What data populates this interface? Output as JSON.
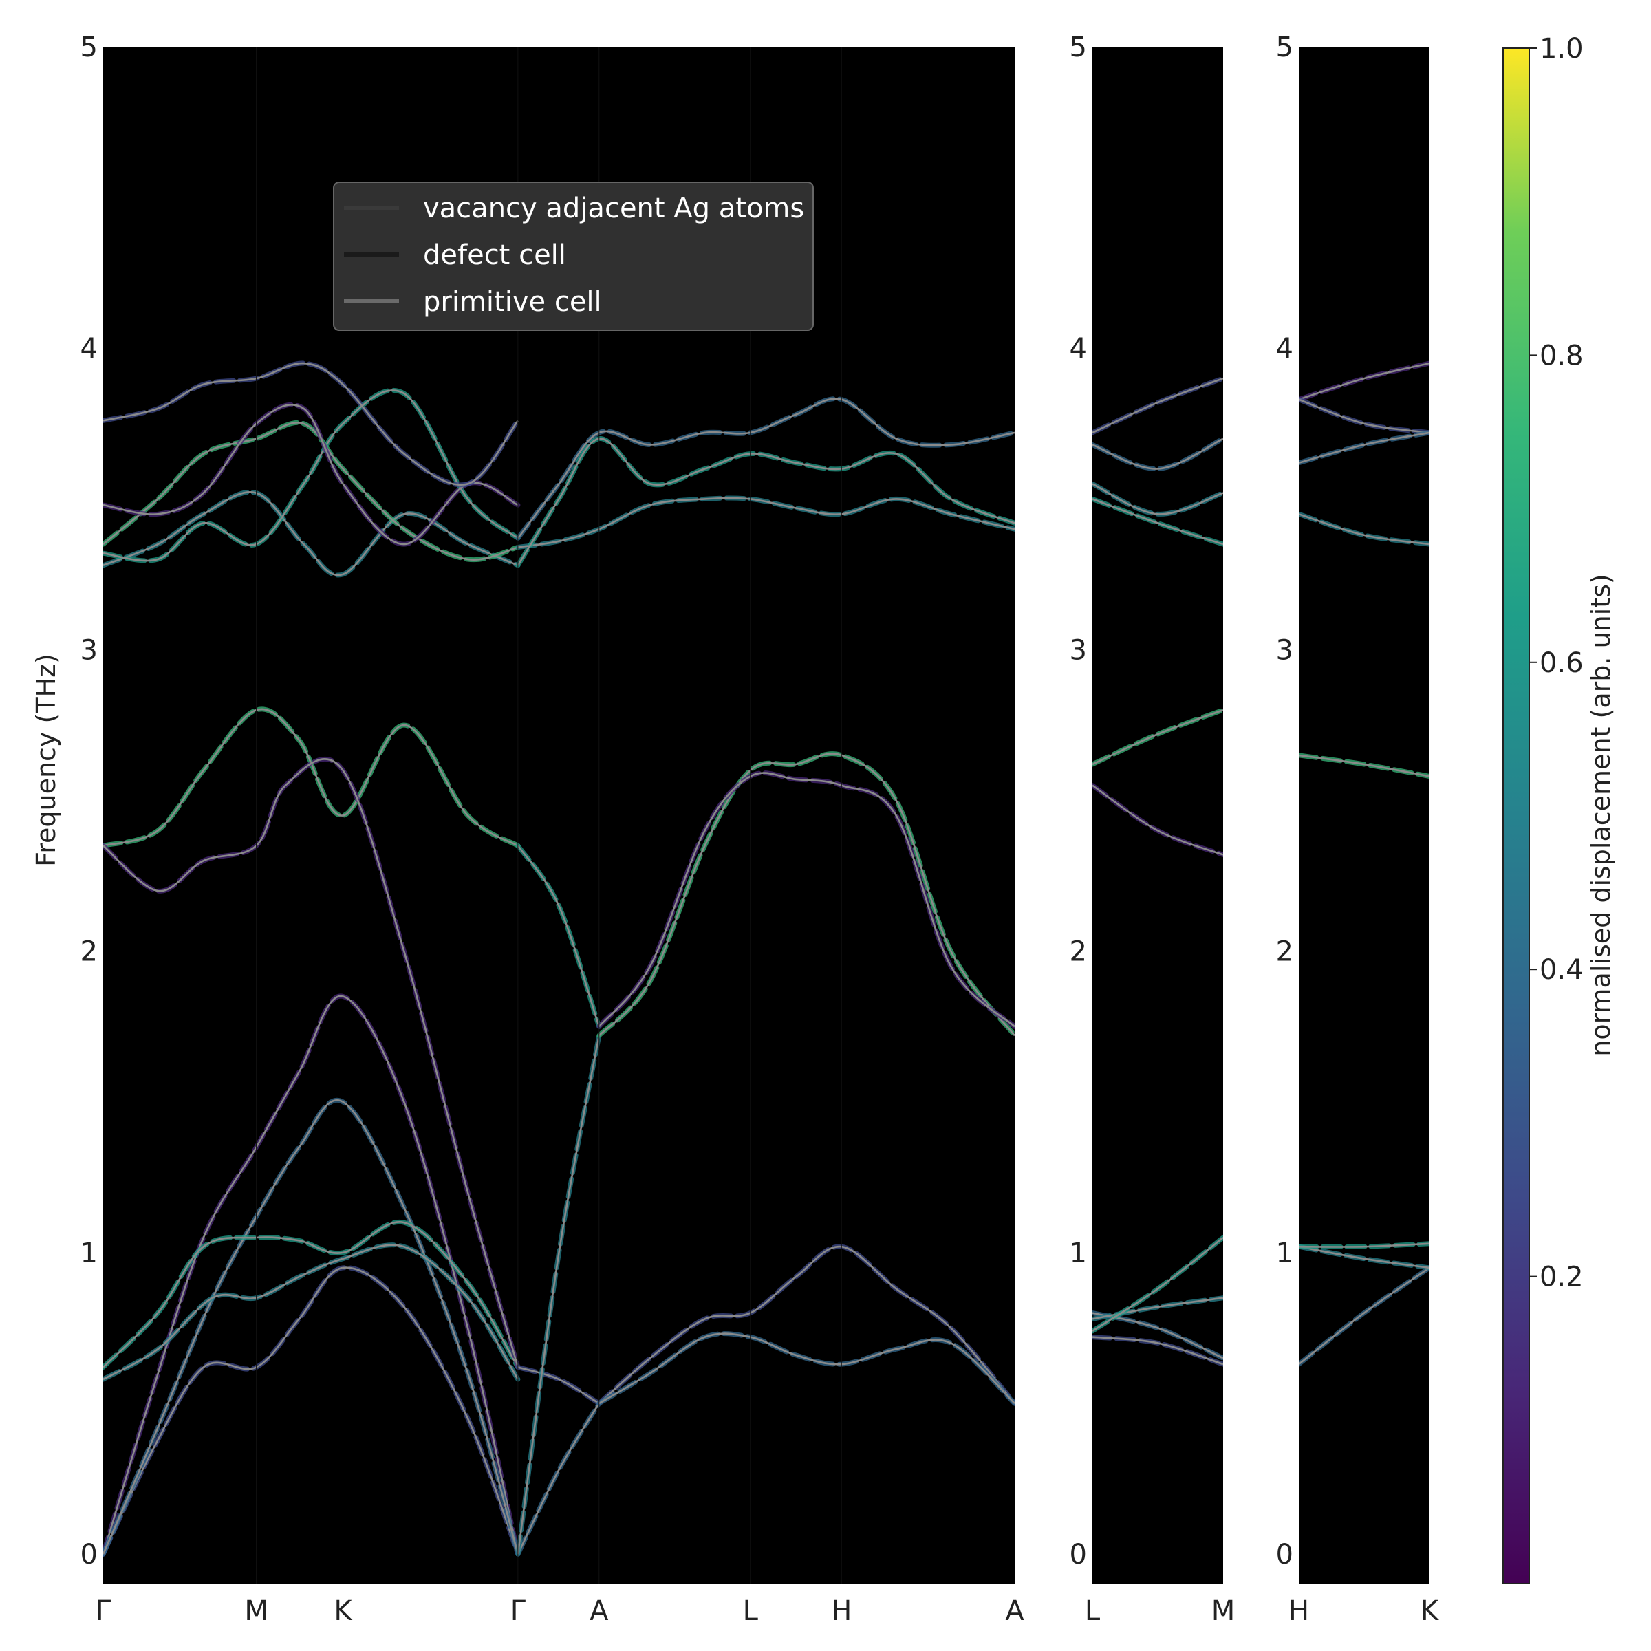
{
  "chart_data": {
    "type": "line",
    "ylabel": "Frequency (THz)",
    "ylim": [
      -0.1,
      5
    ],
    "yticks": [
      0,
      1,
      2,
      3,
      4,
      5
    ],
    "background": "#000000",
    "legend": {
      "placement": "upper-center",
      "entries": [
        {
          "label": "vacancy adjacent Ag atoms",
          "color": "#3a3a3a"
        },
        {
          "label": "defect cell",
          "color": "#1a1a1a"
        },
        {
          "label": "primitive cell",
          "color": "#6a6a6a"
        }
      ]
    },
    "colorbar": {
      "label": "normalised displacement (arb. units)",
      "ticks": [
        0.2,
        0.4,
        0.6,
        0.8,
        1.0
      ],
      "tick_labels": [
        "0.2",
        "0.4",
        "0.6",
        "0.8",
        "1.0"
      ],
      "range": [
        0,
        1
      ],
      "colormap": "viridis"
    },
    "panels": [
      {
        "id": "panel1",
        "segment_labels": [
          "Γ",
          "M",
          "K",
          "Γ",
          "A",
          "L",
          "H",
          "A"
        ],
        "segment_positions": [
          0,
          0.168,
          0.263,
          0.455,
          0.544,
          0.71,
          0.81,
          1.0
        ],
        "primitive_bands": [
          {
            "x": [
              0,
              0.055,
              0.11,
              0.168,
              0.215,
              0.263,
              0.33,
              0.4,
              0.455
            ],
            "y": [
              0,
              0.55,
              1.05,
              1.35,
              1.6,
              1.85,
              1.5,
              0.75,
              0
            ]
          },
          {
            "x": [
              0,
              0.055,
              0.11,
              0.168,
              0.215,
              0.263,
              0.33,
              0.4,
              0.455
            ],
            "y": [
              0,
              0.35,
              0.62,
              0.62,
              0.78,
              0.95,
              0.82,
              0.45,
              0
            ]
          },
          {
            "x": [
              0,
              0.06,
              0.12,
              0.168,
              0.215,
              0.263,
              0.33,
              0.4,
              0.455
            ],
            "y": [
              0,
              0.42,
              0.85,
              1.12,
              1.35,
              1.5,
              1.15,
              0.6,
              0
            ]
          },
          {
            "x": [
              0,
              0.06,
              0.12,
              0.168,
              0.215,
              0.263,
              0.33,
              0.4,
              0.455
            ],
            "y": [
              0.58,
              0.68,
              0.85,
              0.85,
              0.92,
              0.98,
              1.02,
              0.85,
              0.58
            ]
          },
          {
            "x": [
              0,
              0.06,
              0.11,
              0.168,
              0.215,
              0.263,
              0.33,
              0.4,
              0.455
            ],
            "y": [
              0.62,
              0.8,
              1.02,
              1.05,
              1.04,
              1.0,
              1.1,
              0.9,
              0.62
            ]
          },
          {
            "x": [
              0,
              0.06,
              0.11,
              0.168,
              0.215,
              0.263,
              0.33,
              0.4,
              0.455
            ],
            "y": [
              2.35,
              2.4,
              2.6,
              2.8,
              2.7,
              2.45,
              2.75,
              2.45,
              2.35
            ]
          },
          {
            "x": [
              0,
              0.06,
              0.11,
              0.168,
              0.2,
              0.263,
              0.33,
              0.4,
              0.455
            ],
            "y": [
              2.35,
              2.2,
              2.3,
              2.35,
              2.55,
              2.6,
              2.0,
              1.2,
              0.62
            ]
          },
          {
            "x": [
              0.455,
              0.5,
              0.544
            ],
            "y": [
              0.62,
              0.58,
              0.5
            ]
          },
          {
            "x": [
              0.455,
              0.5,
              0.544
            ],
            "y": [
              0,
              0.28,
              0.5
            ]
          },
          {
            "x": [
              0.455,
              0.5,
              0.544
            ],
            "y": [
              0,
              1.0,
              1.72
            ]
          },
          {
            "x": [
              0.455,
              0.5,
              0.544
            ],
            "y": [
              2.35,
              2.15,
              1.75
            ]
          },
          {
            "x": [
              0.544,
              0.6,
              0.66,
              0.71,
              0.76,
              0.81,
              0.87,
              0.93,
              1.0
            ],
            "y": [
              1.72,
              1.9,
              2.35,
              2.6,
              2.62,
              2.65,
              2.5,
              2.0,
              1.72
            ]
          },
          {
            "x": [
              0.544,
              0.6,
              0.66,
              0.71,
              0.76,
              0.81,
              0.87,
              0.93,
              1.0
            ],
            "y": [
              1.75,
              1.95,
              2.4,
              2.58,
              2.57,
              2.55,
              2.45,
              1.95,
              1.75
            ]
          },
          {
            "x": [
              0.544,
              0.6,
              0.66,
              0.71,
              0.76,
              0.81,
              0.87,
              0.93,
              1.0
            ],
            "y": [
              0.5,
              0.65,
              0.78,
              0.8,
              0.92,
              1.02,
              0.88,
              0.75,
              0.5
            ]
          },
          {
            "x": [
              0.544,
              0.6,
              0.66,
              0.71,
              0.76,
              0.81,
              0.87,
              0.93,
              1.0
            ],
            "y": [
              0.5,
              0.6,
              0.72,
              0.72,
              0.66,
              0.63,
              0.68,
              0.7,
              0.5
            ]
          },
          {
            "x": [
              0,
              0.06,
              0.11,
              0.168,
              0.22,
              0.263,
              0.33,
              0.4,
              0.455
            ],
            "y": [
              3.28,
              3.35,
              3.45,
              3.52,
              3.35,
              3.25,
              3.45,
              3.35,
              3.28
            ]
          },
          {
            "x": [
              0,
              0.06,
              0.11,
              0.168,
              0.22,
              0.263,
              0.33,
              0.4,
              0.455
            ],
            "y": [
              3.32,
              3.3,
              3.42,
              3.35,
              3.55,
              3.75,
              3.85,
              3.5,
              3.37
            ]
          },
          {
            "x": [
              0,
              0.06,
              0.11,
              0.168,
              0.22,
              0.263,
              0.33,
              0.4,
              0.455
            ],
            "y": [
              3.35,
              3.5,
              3.65,
              3.7,
              3.75,
              3.6,
              3.4,
              3.3,
              3.34
            ]
          },
          {
            "x": [
              0,
              0.06,
              0.11,
              0.168,
              0.22,
              0.263,
              0.33,
              0.4,
              0.455
            ],
            "y": [
              3.48,
              3.45,
              3.52,
              3.75,
              3.8,
              3.55,
              3.35,
              3.55,
              3.48
            ]
          },
          {
            "x": [
              0,
              0.06,
              0.11,
              0.168,
              0.22,
              0.263,
              0.33,
              0.4,
              0.455
            ],
            "y": [
              3.76,
              3.8,
              3.88,
              3.9,
              3.95,
              3.88,
              3.65,
              3.55,
              3.76
            ]
          },
          {
            "x": [
              0.455,
              0.5,
              0.544,
              0.6,
              0.66,
              0.71,
              0.76,
              0.81,
              0.87,
              0.93,
              1.0
            ],
            "y": [
              3.37,
              3.55,
              3.72,
              3.68,
              3.72,
              3.72,
              3.78,
              3.83,
              3.7,
              3.68,
              3.72
            ]
          },
          {
            "x": [
              0.455,
              0.5,
              0.544,
              0.6,
              0.66,
              0.71,
              0.76,
              0.81,
              0.87,
              0.93,
              1.0
            ],
            "y": [
              3.34,
              3.36,
              3.4,
              3.48,
              3.5,
              3.5,
              3.47,
              3.45,
              3.5,
              3.45,
              3.4
            ]
          },
          {
            "x": [
              0.455,
              0.5,
              0.544,
              0.6,
              0.66,
              0.71,
              0.76,
              0.81,
              0.87,
              0.93,
              1.0
            ],
            "y": [
              3.28,
              3.5,
              3.7,
              3.55,
              3.6,
              3.65,
              3.62,
              3.6,
              3.65,
              3.5,
              3.42
            ]
          }
        ]
      },
      {
        "id": "panel2",
        "segment_labels": [
          "L",
          "M"
        ],
        "segment_positions": [
          0,
          1
        ],
        "primitive_bands": [
          {
            "x": [
              0,
              0.5,
              1
            ],
            "y": [
              0.72,
              0.7,
              0.63
            ]
          },
          {
            "x": [
              0,
              0.5,
              1
            ],
            "y": [
              0.8,
              0.75,
              0.65
            ]
          },
          {
            "x": [
              0,
              0.5,
              1
            ],
            "y": [
              0.78,
              0.82,
              0.85
            ]
          },
          {
            "x": [
              0,
              0.5,
              1
            ],
            "y": [
              0.74,
              0.88,
              1.05
            ]
          },
          {
            "x": [
              0,
              0.5,
              1
            ],
            "y": [
              2.62,
              2.72,
              2.8
            ]
          },
          {
            "x": [
              0,
              0.5,
              1
            ],
            "y": [
              2.55,
              2.4,
              2.32
            ]
          },
          {
            "x": [
              0,
              0.5,
              1
            ],
            "y": [
              3.72,
              3.82,
              3.9
            ]
          },
          {
            "x": [
              0,
              0.5,
              1
            ],
            "y": [
              3.68,
              3.6,
              3.7
            ]
          },
          {
            "x": [
              0,
              0.5,
              1
            ],
            "y": [
              3.55,
              3.45,
              3.52
            ]
          },
          {
            "x": [
              0,
              0.5,
              1
            ],
            "y": [
              3.5,
              3.42,
              3.35
            ]
          }
        ]
      },
      {
        "id": "panel3",
        "segment_labels": [
          "H",
          "K"
        ],
        "segment_positions": [
          0,
          1
        ],
        "primitive_bands": [
          {
            "x": [
              0,
              0.5,
              1
            ],
            "y": [
              0.63,
              0.8,
              0.95
            ]
          },
          {
            "x": [
              0,
              0.5,
              1
            ],
            "y": [
              1.02,
              0.98,
              0.95
            ]
          },
          {
            "x": [
              0,
              0.5,
              1
            ],
            "y": [
              1.02,
              1.02,
              1.03
            ]
          },
          {
            "x": [
              0,
              0.5,
              1
            ],
            "y": [
              2.65,
              2.62,
              2.58
            ]
          },
          {
            "x": [
              0,
              0.5,
              1
            ],
            "y": [
              3.83,
              3.9,
              3.95
            ]
          },
          {
            "x": [
              0,
              0.5,
              1
            ],
            "y": [
              3.83,
              3.75,
              3.72
            ]
          },
          {
            "x": [
              0,
              0.5,
              1
            ],
            "y": [
              3.62,
              3.68,
              3.72
            ]
          },
          {
            "x": [
              0,
              0.5,
              1
            ],
            "y": [
              3.45,
              3.38,
              3.35
            ]
          }
        ]
      }
    ]
  }
}
